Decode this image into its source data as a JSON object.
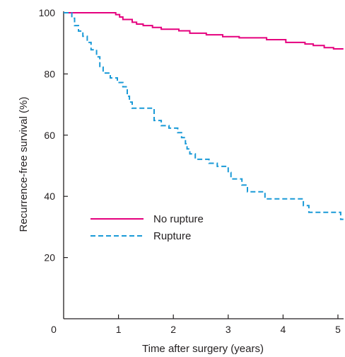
{
  "chart_data": {
    "type": "line",
    "xlabel": "Time after surgery (years)",
    "ylabel": "Recurrence-free survival (%)",
    "xlim": [
      0,
      5.1
    ],
    "ylim": [
      0,
      100
    ],
    "x_ticks": [
      1,
      2,
      3,
      4,
      5
    ],
    "x_origin_label": "0",
    "y_ticks": [
      20,
      40,
      60,
      80,
      100
    ],
    "grid": false,
    "legend_position": "lower-left",
    "series": [
      {
        "name": "No rupture",
        "color": "#e5007e",
        "line_style": "solid",
        "points": [
          [
            0,
            100
          ],
          [
            0.95,
            100
          ],
          [
            0.95,
            99.4
          ],
          [
            1.02,
            99.4
          ],
          [
            1.02,
            98.6
          ],
          [
            1.08,
            98.6
          ],
          [
            1.08,
            97.8
          ],
          [
            1.25,
            97.8
          ],
          [
            1.25,
            96.9
          ],
          [
            1.33,
            96.9
          ],
          [
            1.33,
            96.3
          ],
          [
            1.45,
            96.3
          ],
          [
            1.45,
            95.8
          ],
          [
            1.62,
            95.8
          ],
          [
            1.62,
            95.2
          ],
          [
            1.78,
            95.2
          ],
          [
            1.78,
            94.6
          ],
          [
            2.1,
            94.6
          ],
          [
            2.1,
            94.1
          ],
          [
            2.3,
            94.1
          ],
          [
            2.3,
            93.3
          ],
          [
            2.6,
            93.3
          ],
          [
            2.6,
            92.8
          ],
          [
            2.9,
            92.8
          ],
          [
            2.9,
            92.2
          ],
          [
            3.2,
            92.2
          ],
          [
            3.2,
            91.8
          ],
          [
            3.7,
            91.8
          ],
          [
            3.7,
            91.2
          ],
          [
            4.05,
            91.2
          ],
          [
            4.05,
            90.3
          ],
          [
            4.4,
            90.3
          ],
          [
            4.4,
            89.8
          ],
          [
            4.55,
            89.8
          ],
          [
            4.55,
            89.3
          ],
          [
            4.75,
            89.3
          ],
          [
            4.75,
            88.6
          ],
          [
            4.92,
            88.6
          ],
          [
            4.92,
            88.2
          ],
          [
            5.1,
            88.2
          ]
        ]
      },
      {
        "name": "Rupture",
        "color": "#1a9ad7",
        "line_style": "dashed",
        "points": [
          [
            0,
            100
          ],
          [
            0.15,
            100
          ],
          [
            0.15,
            98.2
          ],
          [
            0.2,
            98.2
          ],
          [
            0.2,
            95.8
          ],
          [
            0.27,
            95.8
          ],
          [
            0.27,
            94
          ],
          [
            0.35,
            94
          ],
          [
            0.35,
            92.3
          ],
          [
            0.43,
            92.3
          ],
          [
            0.43,
            90.3
          ],
          [
            0.5,
            90.3
          ],
          [
            0.5,
            87.9
          ],
          [
            0.6,
            87.9
          ],
          [
            0.6,
            85.6
          ],
          [
            0.66,
            85.6
          ],
          [
            0.66,
            82.2
          ],
          [
            0.72,
            82.2
          ],
          [
            0.72,
            80.3
          ],
          [
            0.85,
            80.3
          ],
          [
            0.85,
            78.7
          ],
          [
            0.98,
            78.7
          ],
          [
            0.98,
            77.2
          ],
          [
            1.08,
            77.2
          ],
          [
            1.08,
            75.8
          ],
          [
            1.16,
            75.8
          ],
          [
            1.16,
            72.7
          ],
          [
            1.2,
            72.7
          ],
          [
            1.2,
            70.8
          ],
          [
            1.25,
            70.8
          ],
          [
            1.25,
            68.8
          ],
          [
            1.65,
            68.8
          ],
          [
            1.65,
            64.8
          ],
          [
            1.78,
            64.8
          ],
          [
            1.78,
            63.1
          ],
          [
            1.92,
            63.1
          ],
          [
            1.92,
            62.3
          ],
          [
            2.08,
            62.3
          ],
          [
            2.08,
            60.8
          ],
          [
            2.15,
            60.8
          ],
          [
            2.15,
            59.2
          ],
          [
            2.22,
            59.2
          ],
          [
            2.22,
            57.2
          ],
          [
            2.25,
            57.2
          ],
          [
            2.25,
            55.5
          ],
          [
            2.3,
            55.5
          ],
          [
            2.3,
            53.9
          ],
          [
            2.4,
            53.9
          ],
          [
            2.4,
            52.1
          ],
          [
            2.65,
            52.1
          ],
          [
            2.65,
            50.8
          ],
          [
            2.8,
            50.8
          ],
          [
            2.8,
            49.8
          ],
          [
            3.0,
            49.8
          ],
          [
            3.0,
            47.8
          ],
          [
            3.05,
            47.8
          ],
          [
            3.05,
            45.7
          ],
          [
            3.25,
            45.7
          ],
          [
            3.25,
            43.7
          ],
          [
            3.35,
            43.7
          ],
          [
            3.35,
            41.5
          ],
          [
            3.67,
            41.5
          ],
          [
            3.67,
            39.2
          ],
          [
            4.37,
            39.2
          ],
          [
            4.37,
            37
          ],
          [
            4.47,
            37
          ],
          [
            4.47,
            34.8
          ],
          [
            5.05,
            34.8
          ],
          [
            5.05,
            32.5
          ],
          [
            5.1,
            32.5
          ]
        ]
      }
    ]
  }
}
